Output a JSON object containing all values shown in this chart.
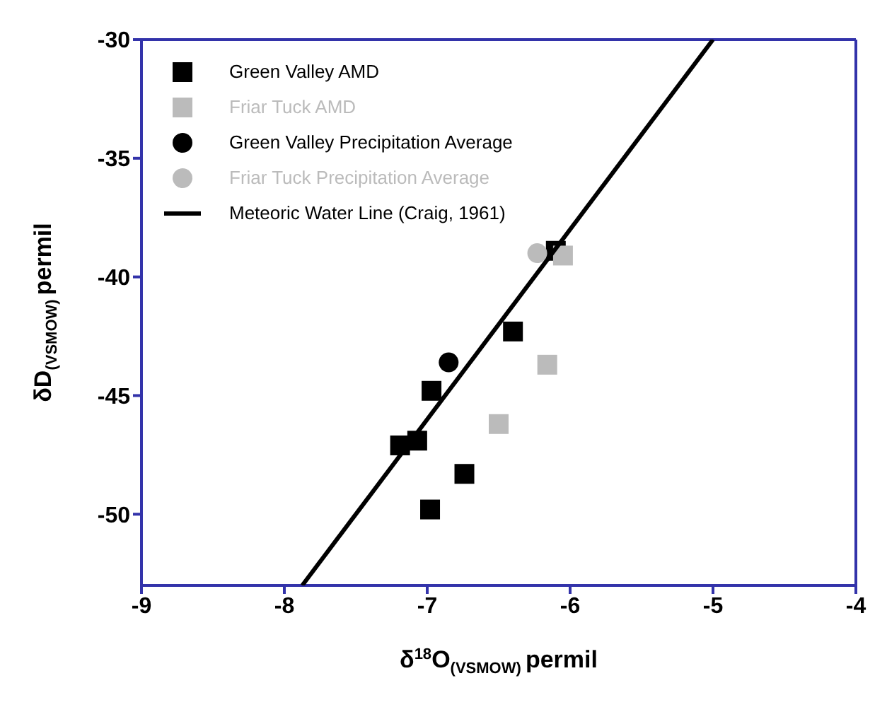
{
  "chart_data": {
    "type": "scatter",
    "xlabel": "δ$^{18}$O$_{(VSMOW)}$ permil",
    "ylabel": "δD$_{(VSMOW)}$ permil",
    "xlim": [
      -9,
      -4
    ],
    "xticks": [
      -9,
      -8,
      -7,
      -6,
      -5,
      -4
    ],
    "ylim": [
      -53,
      -30
    ],
    "yticks": [
      -50,
      -45,
      -40,
      -35,
      -30
    ],
    "legend": "top left",
    "series": [
      {
        "name": "Green Valley AMD",
        "color": "#000000",
        "marker": "square",
        "x": [
          -6.1,
          -6.4,
          -6.97,
          -7.19,
          -7.07,
          -6.74,
          -6.98
        ],
        "values": [
          -38.9,
          -42.3,
          -44.8,
          -47.1,
          -46.9,
          -48.3,
          -49.8
        ]
      },
      {
        "name": "Friar Tuck AMD",
        "color": "#bbbbbb",
        "marker": "square",
        "x": [
          -6.05,
          -6.16,
          -6.5
        ],
        "values": [
          -39.1,
          -43.7,
          -46.2
        ]
      },
      {
        "name": "Green Valley Precipitation Average",
        "color": "#000000",
        "marker": "circle",
        "x": [
          -6.85
        ],
        "values": [
          -43.6
        ]
      },
      {
        "name": "Friar Tuck Precipitation Average",
        "color": "#bbbbbb",
        "marker": "circle",
        "x": [
          -6.23
        ],
        "values": [
          -39.0
        ]
      },
      {
        "name": "Meteoric Water Line (Craig, 1961)",
        "type": "line",
        "color": "#000000",
        "marker": "none",
        "x": [
          -7.875,
          -5
        ],
        "values": [
          -53,
          -30
        ]
      }
    ]
  }
}
